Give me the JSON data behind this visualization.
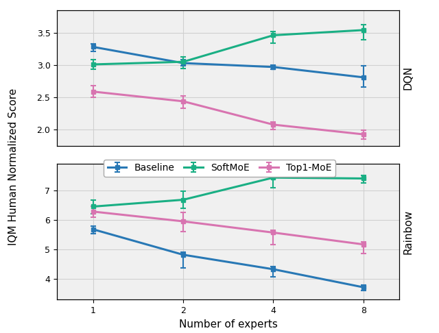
{
  "x": [
    0,
    1,
    2,
    3
  ],
  "x_labels": [
    "1",
    "2",
    "4",
    "8"
  ],
  "dqn": {
    "baseline": {
      "y": [
        3.28,
        3.03,
        2.97,
        2.81
      ],
      "yerr_lo": [
        0.07,
        0.04,
        0.03,
        0.15
      ],
      "yerr_hi": [
        0.05,
        0.05,
        0.03,
        0.18
      ]
    },
    "softmoe": {
      "y": [
        3.01,
        3.05,
        3.46,
        3.54
      ],
      "yerr_lo": [
        0.07,
        0.1,
        0.12,
        0.15
      ],
      "yerr_hi": [
        0.07,
        0.08,
        0.06,
        0.08
      ]
    },
    "top1moe": {
      "y": [
        2.59,
        2.44,
        2.08,
        1.93
      ],
      "yerr_lo": [
        0.09,
        0.11,
        0.07,
        0.07
      ],
      "yerr_hi": [
        0.09,
        0.08,
        0.04,
        0.06
      ]
    }
  },
  "rainbow": {
    "baseline": {
      "y": [
        5.68,
        4.82,
        4.33,
        3.72
      ],
      "yerr_lo": [
        0.14,
        0.44,
        0.25,
        0.1
      ],
      "yerr_hi": [
        0.1,
        0.08,
        0.08,
        0.08
      ]
    },
    "softmoe": {
      "y": [
        6.45,
        6.68,
        7.43,
        7.4
      ],
      "yerr_lo": [
        0.25,
        0.28,
        0.35,
        0.15
      ],
      "yerr_hi": [
        0.22,
        0.28,
        0.1,
        0.1
      ]
    },
    "top1moe": {
      "y": [
        6.28,
        5.95,
        5.57,
        5.17
      ],
      "yerr_lo": [
        0.2,
        0.35,
        0.4,
        0.3
      ],
      "yerr_hi": [
        0.18,
        0.3,
        0.08,
        0.08
      ]
    }
  },
  "colors": {
    "baseline": "#2878b5",
    "softmoe": "#1aaf84",
    "top1moe": "#d874b0"
  },
  "legend_labels": {
    "baseline": "Baseline",
    "softmoe": "SoftMoE",
    "top1moe": "Top1-MoE"
  },
  "xlabel": "Number of experts",
  "ylabel": "IQM Human Normalized Score",
  "dqn_ylabel": "DQN",
  "rainbow_ylabel": "Rainbow",
  "dqn_ylim": [
    1.75,
    3.85
  ],
  "rainbow_ylim": [
    3.3,
    7.9
  ],
  "dqn_yticks": [
    2.0,
    2.5,
    3.0,
    3.5
  ],
  "rainbow_yticks": [
    4.0,
    5.0,
    6.0,
    7.0
  ],
  "marker": "s",
  "linewidth": 2.2,
  "markersize": 5,
  "capsize": 3,
  "capthick": 1.5,
  "elinewidth": 1.5,
  "grid_color": "#d0d0d0",
  "bg_color": "#f0f0f0",
  "legend_fontsize": 10,
  "axis_fontsize": 11,
  "tick_fontsize": 9
}
